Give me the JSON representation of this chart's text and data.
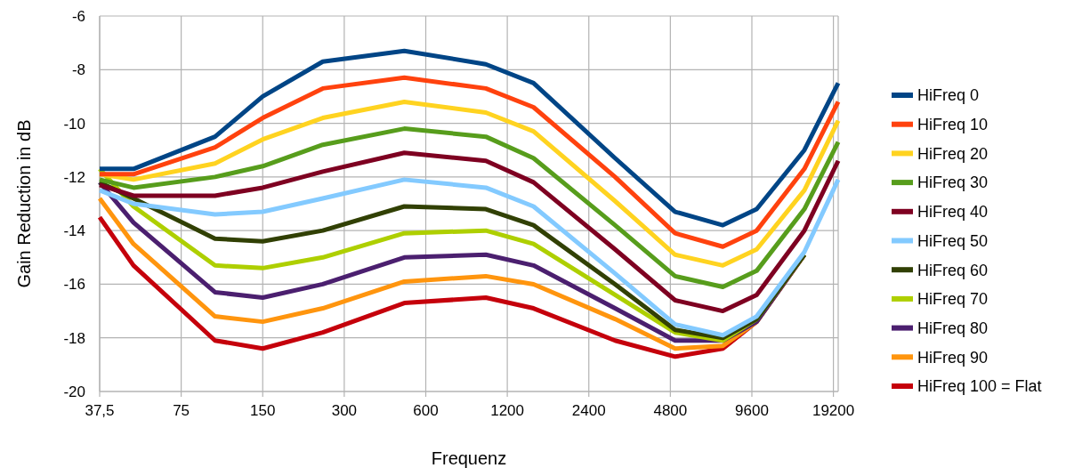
{
  "chart_data": {
    "type": "line",
    "xlabel": "Frequenz",
    "ylabel": "Gain Reduction in dB",
    "log": "x",
    "grid": true,
    "legend": "right",
    "line_style": "solid",
    "marker": "none",
    "x": [
      37.5,
      50,
      100,
      150,
      250,
      500,
      1000,
      1500,
      3000,
      5000,
      7500,
      10000,
      15000,
      20000
    ],
    "xlim": [
      37.5,
      20000
    ],
    "xticks": [
      {
        "value": 37.5,
        "label": "37,5"
      },
      75,
      150,
      300,
      600,
      1200,
      2400,
      4800,
      9600,
      19200
    ],
    "ylim": [
      -20,
      -6
    ],
    "yticks": [
      -20,
      -18,
      -16,
      -14,
      -12,
      -10,
      -8,
      -6
    ],
    "series": [
      {
        "name": "HiFreq 0",
        "color": "#004586",
        "values": [
          -11.7,
          -11.7,
          -10.5,
          -9.0,
          -7.7,
          -7.3,
          -7.8,
          -8.5,
          -11.3,
          -13.3,
          -13.8,
          -13.2,
          -11.0,
          -8.5
        ]
      },
      {
        "name": "HiFreq 10",
        "color": "#ff420e",
        "values": [
          -11.9,
          -11.9,
          -10.9,
          -9.8,
          -8.7,
          -8.3,
          -8.7,
          -9.4,
          -12.0,
          -14.1,
          -14.6,
          -14.0,
          -11.7,
          -9.2
        ]
      },
      {
        "name": "HiFreq 20",
        "color": "#ffd320",
        "values": [
          -11.9,
          -12.1,
          -11.5,
          -10.6,
          -9.8,
          -9.2,
          -9.6,
          -10.3,
          -12.9,
          -14.9,
          -15.3,
          -14.7,
          -12.5,
          -9.9
        ]
      },
      {
        "name": "HiFreq 30",
        "color": "#579d1c",
        "values": [
          -12.1,
          -12.4,
          -12.0,
          -11.6,
          -10.8,
          -10.2,
          -10.5,
          -11.3,
          -13.8,
          -15.7,
          -16.1,
          -15.5,
          -13.2,
          -10.7
        ]
      },
      {
        "name": "HiFreq 40",
        "color": "#7e0021",
        "values": [
          -12.3,
          -12.7,
          -12.7,
          -12.4,
          -11.8,
          -11.1,
          -11.4,
          -12.2,
          -14.7,
          -16.6,
          -17.0,
          -16.4,
          -14.0,
          -11.4
        ]
      },
      {
        "name": "HiFreq 50",
        "color": "#83caff",
        "values": [
          -12.5,
          -13.0,
          -13.4,
          -13.3,
          -12.8,
          -12.1,
          -12.4,
          -13.1,
          -15.6,
          -17.5,
          -17.9,
          -17.2,
          -14.8,
          -12.1
        ]
      },
      {
        "name": "HiFreq 60",
        "color": "#314004",
        "values": [
          -12.2,
          -12.8,
          -14.3,
          -14.4,
          -14.0,
          -13.1,
          -13.2,
          -13.8,
          -16.0,
          -17.7,
          -18.0,
          -17.3,
          -14.9,
          null
        ]
      },
      {
        "name": "HiFreq 70",
        "color": "#aecf00",
        "values": [
          -11.7,
          -13.1,
          -15.3,
          -15.4,
          -15.0,
          -14.1,
          -14.0,
          -14.5,
          -16.4,
          -17.8,
          -18.1,
          -17.3,
          -14.9,
          null
        ]
      },
      {
        "name": "HiFreq 80",
        "color": "#4b1f6f",
        "values": [
          -12.2,
          -13.7,
          -16.3,
          -16.5,
          -16.0,
          -15.0,
          -14.9,
          -15.3,
          -16.9,
          -18.1,
          -18.1,
          -17.4,
          -14.9,
          null
        ]
      },
      {
        "name": "HiFreq 90",
        "color": "#ff950e",
        "values": [
          -12.8,
          -14.5,
          -17.2,
          -17.4,
          -16.9,
          -15.9,
          -15.7,
          -16.0,
          -17.3,
          -18.4,
          -18.3,
          -17.4,
          -14.9,
          null
        ]
      },
      {
        "name": "HiFreq 100 = Flat",
        "color": "#c5000b",
        "values": [
          -13.5,
          -15.3,
          -18.1,
          -18.4,
          -17.8,
          -16.7,
          -16.5,
          -16.9,
          -18.1,
          -18.7,
          -18.4,
          -17.4,
          -14.9,
          null
        ]
      }
    ]
  }
}
